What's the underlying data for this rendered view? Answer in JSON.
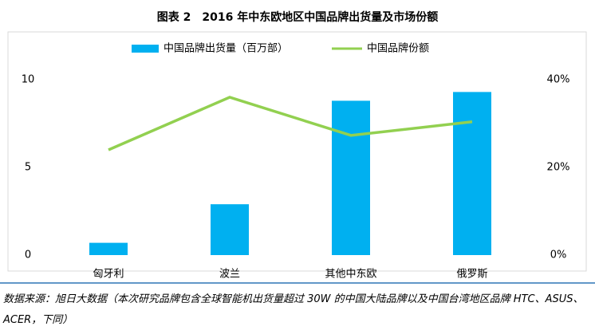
{
  "chart_data": {
    "type": "bar_line",
    "title": "图表 2　2016 年中东欧地区中国品牌出货量及市场份额",
    "categories": [
      "匈牙利",
      "波兰",
      "其他中东欧",
      "俄罗斯"
    ],
    "series": [
      {
        "name": "中国品牌出货量（百万部）",
        "color": "#00b0f0",
        "type": "bar",
        "values": [
          0.7,
          2.9,
          8.8,
          9.3
        ]
      },
      {
        "name": "中国品牌份额",
        "color": "#92d050",
        "type": "line",
        "axis": "y2",
        "values": [
          24,
          36,
          27.3,
          30.4
        ]
      }
    ],
    "ylim": [
      0,
      10
    ],
    "yticks": [
      0,
      5,
      10
    ],
    "y2lim": [
      0,
      40
    ],
    "y2ticks": [
      {
        "value": 0,
        "label": "0%"
      },
      {
        "value": 20,
        "label": "20%"
      },
      {
        "value": 40,
        "label": "40%"
      }
    ],
    "legend": "top",
    "source": "数据来源：旭日大数据（本次研究品牌包含全球智能机出货量超过 30W 的中国大陆品牌以及中国台湾地区品牌 HTC、ASUS、ACER，下同）"
  }
}
